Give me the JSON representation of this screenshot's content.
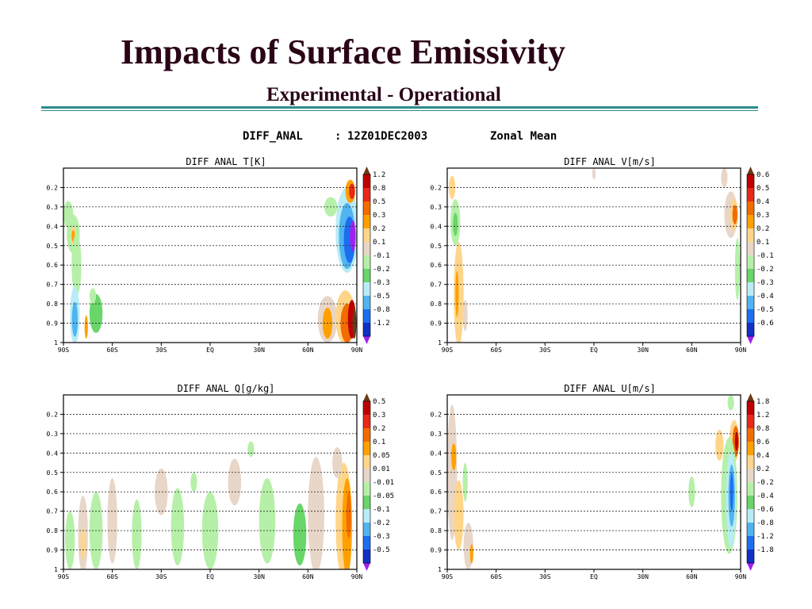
{
  "slide": {
    "title": "Impacts of Surface Emissivity",
    "subtitle": "Experimental - Operational"
  },
  "figure_header": {
    "field": "DIFF_ANAL",
    "separator": ":",
    "time": "12Z01DEC2003",
    "kind": "Zonal Mean"
  },
  "colors": {
    "title": "#2a0418",
    "rule": "#2e8b8b"
  },
  "chart_data": [
    {
      "type": "heatmap",
      "title": "DIFF ANAL  T[K]",
      "x_ticks": [
        "90S",
        "60S",
        "30S",
        "EQ",
        "30N",
        "60N",
        "90N"
      ],
      "y_ticks": [
        "0.2",
        "0.3",
        "0.4",
        "0.5",
        "0.6",
        "0.7",
        "0.8",
        "0.9",
        "1"
      ],
      "ylim": [
        0.1,
        1.0
      ],
      "levels": [
        "1.2",
        "0.8",
        "0.5",
        "0.3",
        "0.2",
        "0.1",
        "-0.1",
        "-0.2",
        "-0.3",
        "-0.5",
        "-0.8",
        "-1.2"
      ],
      "level_colors": [
        "#c00000",
        "#e82818",
        "#f26c00",
        "#ffa000",
        "#ffd58a",
        "#e8d6c8",
        "#b6f0a8",
        "#68d668",
        "#b8ecf6",
        "#50b4f0",
        "#1c6ef0",
        "#1030c8"
      ],
      "cap_top": "#6a3a18",
      "cap_bottom": "#a020f0",
      "regions": [
        {
          "lat": -87,
          "sig": 0.34,
          "w": 3,
          "h": 0.07,
          "level": 6
        },
        {
          "lat": -84,
          "sig": 0.44,
          "w": 4,
          "h": 0.1,
          "level": 6
        },
        {
          "lat": -84,
          "sig": 0.45,
          "w": 1.5,
          "h": 0.05,
          "level": 4
        },
        {
          "lat": -84,
          "sig": 0.45,
          "w": 1,
          "h": 0.03,
          "level": 3
        },
        {
          "lat": -82,
          "sig": 0.6,
          "w": 3,
          "h": 0.16,
          "level": 6
        },
        {
          "lat": -83,
          "sig": 0.86,
          "w": 3,
          "h": 0.15,
          "level": 8
        },
        {
          "lat": -83,
          "sig": 0.88,
          "w": 1.8,
          "h": 0.09,
          "level": 9
        },
        {
          "lat": -70,
          "sig": 0.85,
          "w": 4,
          "h": 0.1,
          "level": 7
        },
        {
          "lat": -76,
          "sig": 0.92,
          "w": 1,
          "h": 0.06,
          "level": 3
        },
        {
          "lat": -72,
          "sig": 0.76,
          "w": 2,
          "h": 0.04,
          "level": 6
        },
        {
          "lat": 72,
          "sig": 0.88,
          "w": 6,
          "h": 0.12,
          "level": 5
        },
        {
          "lat": 72,
          "sig": 0.9,
          "w": 3,
          "h": 0.08,
          "level": 3
        },
        {
          "lat": 83,
          "sig": 0.87,
          "w": 6,
          "h": 0.14,
          "level": 4
        },
        {
          "lat": 84,
          "sig": 0.9,
          "w": 4,
          "h": 0.1,
          "level": 2
        },
        {
          "lat": 87,
          "sig": 0.88,
          "w": 2.5,
          "h": 0.1,
          "level": 0
        },
        {
          "lat": 88.5,
          "sig": 0.9,
          "w": 1.2,
          "h": 0.08,
          "level": "cap_top"
        },
        {
          "lat": 84,
          "sig": 0.42,
          "w": 7,
          "h": 0.22,
          "level": 8
        },
        {
          "lat": 84,
          "sig": 0.45,
          "w": 5,
          "h": 0.17,
          "level": 9
        },
        {
          "lat": 85.5,
          "sig": 0.47,
          "w": 3.5,
          "h": 0.12,
          "level": 10
        },
        {
          "lat": 87.5,
          "sig": 0.45,
          "w": 1.8,
          "h": 0.08,
          "level": "cap_bottom"
        },
        {
          "lat": 86,
          "sig": 0.22,
          "w": 3,
          "h": 0.06,
          "level": 3
        },
        {
          "lat": 87,
          "sig": 0.22,
          "w": 1.8,
          "h": 0.04,
          "level": 1
        },
        {
          "lat": 74,
          "sig": 0.3,
          "w": 4,
          "h": 0.05,
          "level": 6
        }
      ]
    },
    {
      "type": "heatmap",
      "title": "DIFF ANAL  V[m/s]",
      "x_ticks": [
        "90S",
        "60S",
        "30S",
        "EQ",
        "30N",
        "60N",
        "90N"
      ],
      "y_ticks": [
        "0.2",
        "0.3",
        "0.4",
        "0.5",
        "0.6",
        "0.7",
        "0.8",
        "0.9",
        "1"
      ],
      "ylim": [
        0.1,
        1.0
      ],
      "levels": [
        "0.6",
        "0.5",
        "0.4",
        "0.3",
        "0.2",
        "0.1",
        "-0.1",
        "-0.2",
        "-0.3",
        "-0.4",
        "-0.5",
        "-0.6"
      ],
      "level_colors": [
        "#c00000",
        "#e82818",
        "#f26c00",
        "#ffa000",
        "#ffd58a",
        "#e8d6c8",
        "#b6f0a8",
        "#68d668",
        "#b8ecf6",
        "#50b4f0",
        "#1c6ef0",
        "#1030c8"
      ],
      "cap_top": "#6a3a18",
      "cap_bottom": "#a020f0",
      "regions": [
        {
          "lat": -87,
          "sig": 0.2,
          "w": 2,
          "h": 0.06,
          "level": 4
        },
        {
          "lat": -85,
          "sig": 0.38,
          "w": 3,
          "h": 0.12,
          "level": 6
        },
        {
          "lat": -85,
          "sig": 0.39,
          "w": 1.5,
          "h": 0.06,
          "level": 7
        },
        {
          "lat": -83,
          "sig": 0.75,
          "w": 3,
          "h": 0.27,
          "level": 4
        },
        {
          "lat": -84,
          "sig": 0.75,
          "w": 1,
          "h": 0.12,
          "level": 3
        },
        {
          "lat": -79,
          "sig": 0.86,
          "w": 1.5,
          "h": 0.08,
          "level": 5
        },
        {
          "lat": 84,
          "sig": 0.34,
          "w": 4,
          "h": 0.12,
          "level": 5
        },
        {
          "lat": 86,
          "sig": 0.34,
          "w": 2.5,
          "h": 0.08,
          "level": 4
        },
        {
          "lat": 86.5,
          "sig": 0.34,
          "w": 1.5,
          "h": 0.05,
          "level": 2
        },
        {
          "lat": 88,
          "sig": 0.62,
          "w": 1.5,
          "h": 0.16,
          "level": 6
        },
        {
          "lat": 80,
          "sig": 0.15,
          "w": 2,
          "h": 0.05,
          "level": 5
        },
        {
          "lat": 0,
          "sig": 0.13,
          "w": 1,
          "h": 0.03,
          "level": 5
        }
      ]
    },
    {
      "type": "heatmap",
      "title": "DIFF ANAL  Q[g/kg]",
      "x_ticks": [
        "90S",
        "60S",
        "30S",
        "EQ",
        "30N",
        "60N",
        "90N"
      ],
      "y_ticks": [
        "0.2",
        "0.3",
        "0.4",
        "0.5",
        "0.6",
        "0.7",
        "0.8",
        "0.9",
        "1"
      ],
      "ylim": [
        0.1,
        1.0
      ],
      "levels": [
        "0.5",
        "0.3",
        "0.2",
        "0.1",
        "0.05",
        "0.01",
        "-0.01",
        "-0.05",
        "-0.1",
        "-0.2",
        "-0.3",
        "-0.5"
      ],
      "level_colors": [
        "#c00000",
        "#e82818",
        "#f26c00",
        "#ffa000",
        "#ffd58a",
        "#e8d6c8",
        "#b6f0a8",
        "#68d668",
        "#b8ecf6",
        "#50b4f0",
        "#1c6ef0",
        "#1030c8"
      ],
      "cap_top": "#6a3a18",
      "cap_bottom": "#a020f0",
      "regions": [
        {
          "lat": -86,
          "sig": 0.85,
          "w": 3,
          "h": 0.15,
          "level": 6
        },
        {
          "lat": -78,
          "sig": 0.82,
          "w": 3,
          "h": 0.2,
          "level": 5
        },
        {
          "lat": -78,
          "sig": 0.87,
          "w": 1.5,
          "h": 0.08,
          "level": 4
        },
        {
          "lat": -70,
          "sig": 0.8,
          "w": 4,
          "h": 0.2,
          "level": 6
        },
        {
          "lat": -60,
          "sig": 0.75,
          "w": 3,
          "h": 0.22,
          "level": 5
        },
        {
          "lat": -45,
          "sig": 0.82,
          "w": 3,
          "h": 0.18,
          "level": 6
        },
        {
          "lat": -30,
          "sig": 0.6,
          "w": 4,
          "h": 0.12,
          "level": 5
        },
        {
          "lat": -20,
          "sig": 0.78,
          "w": 4,
          "h": 0.2,
          "level": 6
        },
        {
          "lat": 0,
          "sig": 0.8,
          "w": 5,
          "h": 0.2,
          "level": 6
        },
        {
          "lat": 15,
          "sig": 0.55,
          "w": 4,
          "h": 0.12,
          "level": 5
        },
        {
          "lat": 35,
          "sig": 0.75,
          "w": 5,
          "h": 0.22,
          "level": 6
        },
        {
          "lat": 55,
          "sig": 0.82,
          "w": 4,
          "h": 0.16,
          "level": 7
        },
        {
          "lat": 65,
          "sig": 0.72,
          "w": 5,
          "h": 0.3,
          "level": 5
        },
        {
          "lat": 82,
          "sig": 0.75,
          "w": 5,
          "h": 0.3,
          "level": 4
        },
        {
          "lat": 84,
          "sig": 0.78,
          "w": 3,
          "h": 0.25,
          "level": 3
        },
        {
          "lat": 85,
          "sig": 0.72,
          "w": 1.5,
          "h": 0.12,
          "level": 2
        },
        {
          "lat": 78,
          "sig": 0.45,
          "w": 3,
          "h": 0.08,
          "level": 5
        },
        {
          "lat": -10,
          "sig": 0.55,
          "w": 2,
          "h": 0.05,
          "level": 6
        },
        {
          "lat": 25,
          "sig": 0.38,
          "w": 2,
          "h": 0.04,
          "level": 6
        }
      ]
    },
    {
      "type": "heatmap",
      "title": "DIFF ANAL  U[m/s]",
      "x_ticks": [
        "90S",
        "60S",
        "30S",
        "EQ",
        "30N",
        "60N",
        "90N"
      ],
      "y_ticks": [
        "0.2",
        "0.3",
        "0.4",
        "0.5",
        "0.6",
        "0.7",
        "0.8",
        "0.9",
        "1"
      ],
      "ylim": [
        0.1,
        1.0
      ],
      "levels": [
        "1.8",
        "1.2",
        "0.8",
        "0.6",
        "0.4",
        "0.2",
        "-0.2",
        "-0.4",
        "-0.6",
        "-0.8",
        "-1.2",
        "-1.8"
      ],
      "level_colors": [
        "#c00000",
        "#e82818",
        "#f26c00",
        "#ffa000",
        "#ffd58a",
        "#e8d6c8",
        "#b6f0a8",
        "#68d668",
        "#b8ecf6",
        "#50b4f0",
        "#1c6ef0",
        "#1030c8"
      ],
      "cap_top": "#6a3a18",
      "cap_bottom": "#a020f0",
      "regions": [
        {
          "lat": -87,
          "sig": 0.5,
          "w": 3,
          "h": 0.35,
          "level": 5
        },
        {
          "lat": -86,
          "sig": 0.42,
          "w": 1.5,
          "h": 0.07,
          "level": 3
        },
        {
          "lat": -83,
          "sig": 0.72,
          "w": 3,
          "h": 0.18,
          "level": 4
        },
        {
          "lat": -77,
          "sig": 0.88,
          "w": 3,
          "h": 0.12,
          "level": 5
        },
        {
          "lat": -75,
          "sig": 0.92,
          "w": 1,
          "h": 0.05,
          "level": 3
        },
        {
          "lat": -79,
          "sig": 0.55,
          "w": 1.5,
          "h": 0.1,
          "level": 6
        },
        {
          "lat": 86,
          "sig": 0.34,
          "w": 3,
          "h": 0.11,
          "level": 4
        },
        {
          "lat": 87,
          "sig": 0.34,
          "w": 2,
          "h": 0.08,
          "level": 2
        },
        {
          "lat": 87.5,
          "sig": 0.34,
          "w": 1,
          "h": 0.05,
          "level": 0
        },
        {
          "lat": 77,
          "sig": 0.36,
          "w": 2.5,
          "h": 0.08,
          "level": 4
        },
        {
          "lat": 83,
          "sig": 0.62,
          "w": 5,
          "h": 0.3,
          "level": 6
        },
        {
          "lat": 84,
          "sig": 0.64,
          "w": 3,
          "h": 0.25,
          "level": 8
        },
        {
          "lat": 84.5,
          "sig": 0.62,
          "w": 2,
          "h": 0.16,
          "level": 9
        },
        {
          "lat": 84.5,
          "sig": 0.6,
          "w": 1,
          "h": 0.1,
          "level": 10
        },
        {
          "lat": 84,
          "sig": 0.14,
          "w": 2,
          "h": 0.04,
          "level": 6
        },
        {
          "lat": 60,
          "sig": 0.6,
          "w": 2,
          "h": 0.08,
          "level": 6
        }
      ]
    }
  ]
}
